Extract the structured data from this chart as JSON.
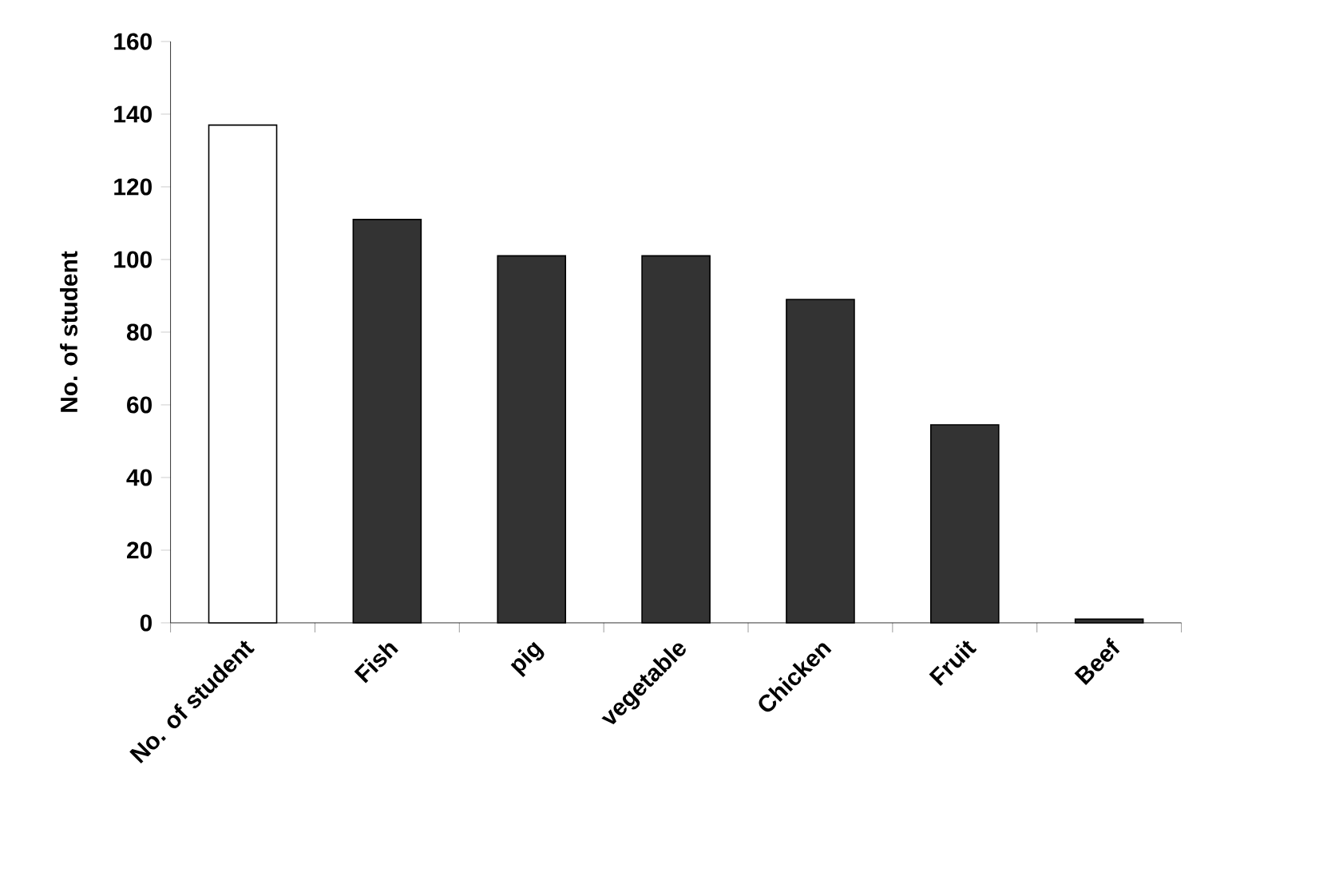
{
  "chart_data": {
    "type": "bar",
    "ylabel": "No. of student",
    "categories": [
      "No. of student",
      "Fish",
      "pig",
      "vegetable",
      "Chicken",
      "Fruit",
      "Beef"
    ],
    "values": [
      137,
      111,
      101,
      101,
      89,
      54.5,
      1
    ],
    "colors": [
      "#ffffff",
      "#333333",
      "#333333",
      "#333333",
      "#333333",
      "#333333",
      "#333333"
    ],
    "ylim": [
      0,
      160
    ],
    "yticks": [
      0,
      20,
      40,
      60,
      80,
      100,
      120,
      140,
      160
    ]
  }
}
